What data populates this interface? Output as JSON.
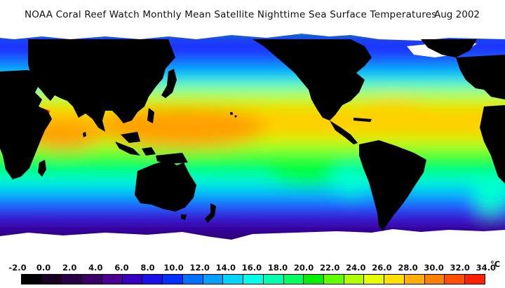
{
  "header": {
    "title": "NOAA Coral Reef Watch Monthly Mean Satellite Nighttime Sea Surface Temperatures",
    "date": "Aug 2002"
  },
  "legend": {
    "unit": "°C",
    "ticks": [
      "-2.0",
      "0.0",
      "2.0",
      "4.0",
      "6.0",
      "8.0",
      "10.0",
      "12.0",
      "14.0",
      "16.0",
      "18.0",
      "20.0",
      "22.0",
      "24.0",
      "26.0",
      "28.0",
      "30.0",
      "32.0",
      "34.0"
    ],
    "colors": [
      "#000000",
      "#1a0024",
      "#2a0046",
      "#3b0068",
      "#4a0090",
      "#3a00c0",
      "#1a10ee",
      "#0030ff",
      "#0070ff",
      "#00a0ff",
      "#00d4ff",
      "#00ffe8",
      "#00ffb0",
      "#00ff60",
      "#00f000",
      "#60ff00",
      "#b0ff00",
      "#e8ff00",
      "#ffe000",
      "#ffb000",
      "#ff8000",
      "#ff5000",
      "#ff2000"
    ]
  },
  "map": {
    "land_color": "#000000",
    "ice_color": "#ffffff",
    "palette": {
      "cold": "#2a0070",
      "cool": "#4000b8",
      "subpolar": "#1a30ff",
      "temperate": "#00b0ff",
      "mild": "#00ffd0",
      "subtropical": "#00ff40",
      "warm": "#b8ff00",
      "tropical": "#ffd000",
      "hot": "#ffa000"
    }
  }
}
